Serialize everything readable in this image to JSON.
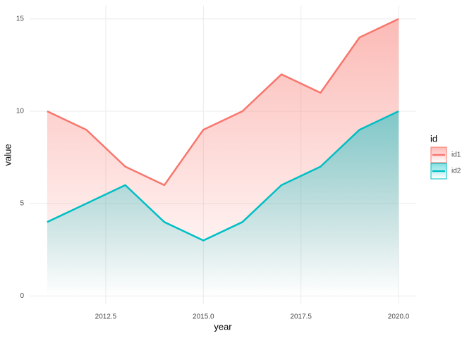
{
  "chart_data": {
    "type": "area",
    "x": [
      2011,
      2012,
      2013,
      2014,
      2015,
      2016,
      2017,
      2018,
      2019,
      2020
    ],
    "series": [
      {
        "name": "id1",
        "color": "#f8766d",
        "values": [
          10,
          9,
          7,
          6,
          9,
          10,
          12,
          11,
          14,
          15
        ]
      },
      {
        "name": "id2",
        "color": "#00bfc4",
        "values": [
          4,
          5,
          6,
          4,
          3,
          4,
          6,
          7,
          9,
          10
        ]
      }
    ],
    "xlabel": "year",
    "ylabel": "value",
    "legend_title": "id",
    "xlim": [
      2010.55,
      2020.45
    ],
    "xticks": [
      {
        "value": 2012.5,
        "label": "2012.5"
      },
      {
        "value": 2015,
        "label": "2015.0"
      },
      {
        "value": 2017.5,
        "label": "2017.5"
      },
      {
        "value": 2020,
        "label": "2020.0"
      }
    ],
    "ylim": [
      -0.45,
      15.72
    ],
    "yticks": [
      0,
      5,
      10,
      15
    ],
    "grid": true,
    "legend": "right"
  }
}
